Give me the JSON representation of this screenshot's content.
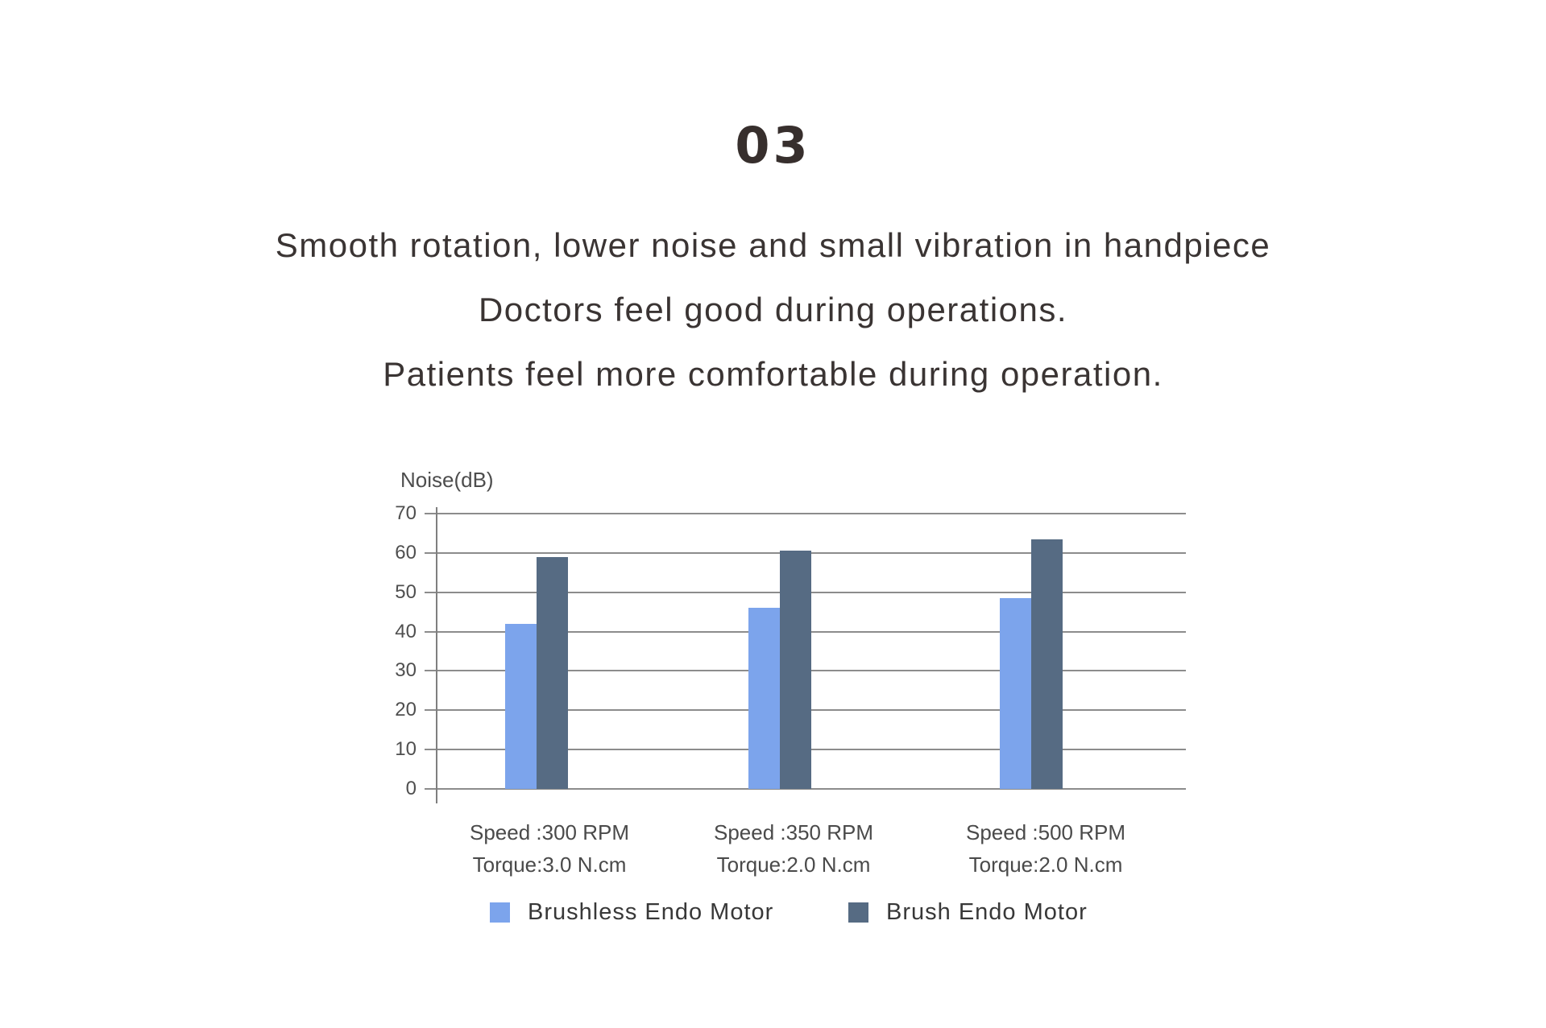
{
  "header": {
    "index": "03",
    "lines": [
      "Smooth rotation, lower noise and small vibration in handpiece",
      "Doctors feel good during operations.",
      "Patients feel more comfortable during operation."
    ]
  },
  "chart_data": {
    "type": "bar",
    "title": "",
    "ylabel": "Noise(dB)",
    "xlabel": "",
    "ylim": [
      0,
      70
    ],
    "ytick_step": 10,
    "grid": true,
    "legend_position": "bottom",
    "categories": [
      {
        "line1": "Speed :300 RPM",
        "line2": "Torque:3.0 N.cm"
      },
      {
        "line1": "Speed :350 RPM",
        "line2": "Torque:2.0 N.cm"
      },
      {
        "line1": "Speed :500 RPM",
        "line2": "Torque:2.0 N.cm"
      }
    ],
    "series": [
      {
        "name": "Brushless Endo Motor",
        "color": "#7ca4ec",
        "values": [
          42,
          46,
          48.5
        ]
      },
      {
        "name": "Brush Endo Motor",
        "color": "#566b83",
        "values": [
          59,
          60.5,
          63.5
        ]
      }
    ]
  }
}
